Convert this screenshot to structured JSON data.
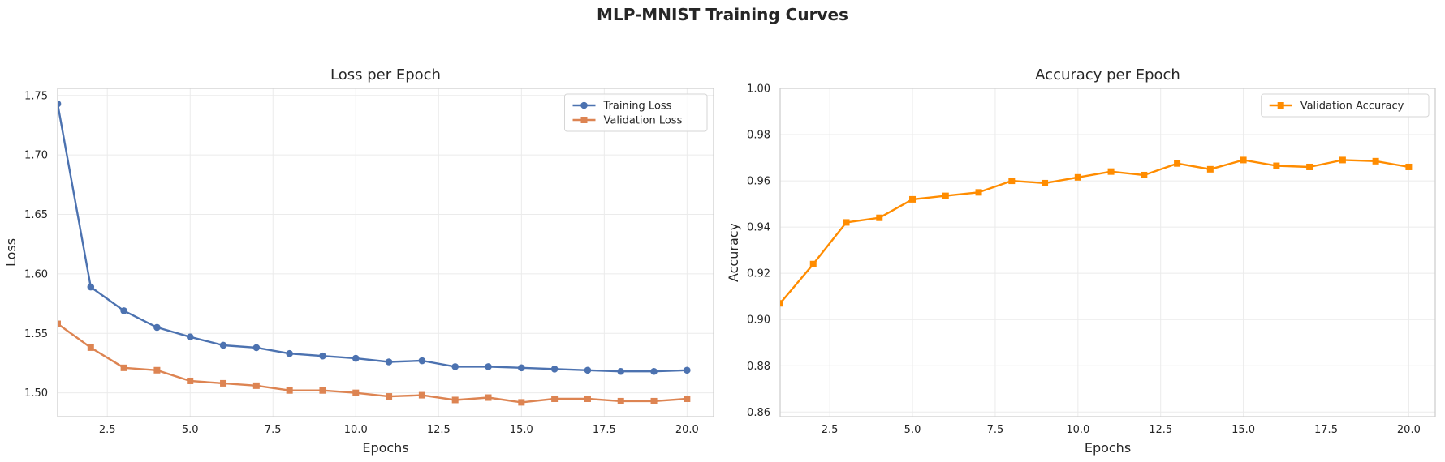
{
  "figure": {
    "title": "MLP-MNIST Training Curves"
  },
  "chart_data": [
    {
      "type": "line",
      "title": "Loss per Epoch",
      "xlabel": "Epochs",
      "ylabel": "Loss",
      "x": [
        1,
        2,
        3,
        4,
        5,
        6,
        7,
        8,
        9,
        10,
        11,
        12,
        13,
        14,
        15,
        16,
        17,
        18,
        19,
        20
      ],
      "xlim": [
        1,
        20.8
      ],
      "ylim": [
        1.48,
        1.756
      ],
      "xticks": [
        2.5,
        5.0,
        7.5,
        10.0,
        12.5,
        15.0,
        17.5,
        20.0
      ],
      "xtick_labels": [
        "2.5",
        "5.0",
        "7.5",
        "10.0",
        "12.5",
        "15.0",
        "17.5",
        "20.0"
      ],
      "yticks": [
        1.5,
        1.55,
        1.6,
        1.65,
        1.7,
        1.75
      ],
      "ytick_labels": [
        "1.50",
        "1.55",
        "1.60",
        "1.65",
        "1.70",
        "1.75"
      ],
      "grid": true,
      "legend": "top-right",
      "series": [
        {
          "name": "Training Loss",
          "color": "#4c72b0",
          "marker": "circle",
          "values": [
            1.743,
            1.589,
            1.569,
            1.555,
            1.547,
            1.54,
            1.538,
            1.533,
            1.531,
            1.529,
            1.526,
            1.527,
            1.522,
            1.522,
            1.521,
            1.52,
            1.519,
            1.518,
            1.518,
            1.519
          ]
        },
        {
          "name": "Validation Loss",
          "color": "#dd8452",
          "marker": "square",
          "values": [
            1.558,
            1.538,
            1.521,
            1.519,
            1.51,
            1.508,
            1.506,
            1.502,
            1.502,
            1.5,
            1.497,
            1.498,
            1.494,
            1.496,
            1.492,
            1.495,
            1.495,
            1.493,
            1.493,
            1.495
          ]
        }
      ]
    },
    {
      "type": "line",
      "title": "Accuracy per Epoch",
      "xlabel": "Epochs",
      "ylabel": "Accuracy",
      "x": [
        1,
        2,
        3,
        4,
        5,
        6,
        7,
        8,
        9,
        10,
        11,
        12,
        13,
        14,
        15,
        16,
        17,
        18,
        19,
        20
      ],
      "xlim": [
        1,
        20.8
      ],
      "ylim": [
        0.858,
        1.0
      ],
      "xticks": [
        2.5,
        5.0,
        7.5,
        10.0,
        12.5,
        15.0,
        17.5,
        20.0
      ],
      "xtick_labels": [
        "2.5",
        "5.0",
        "7.5",
        "10.0",
        "12.5",
        "15.0",
        "17.5",
        "20.0"
      ],
      "yticks": [
        0.86,
        0.88,
        0.9,
        0.92,
        0.94,
        0.96,
        0.98,
        1.0
      ],
      "ytick_labels": [
        "0.86",
        "0.88",
        "0.90",
        "0.92",
        "0.94",
        "0.96",
        "0.98",
        "1.00"
      ],
      "grid": true,
      "legend": "top-right",
      "series": [
        {
          "name": "Validation Accuracy",
          "color": "#ff8c00",
          "marker": "square",
          "values": [
            0.907,
            0.924,
            0.942,
            0.944,
            0.952,
            0.9535,
            0.955,
            0.96,
            0.959,
            0.9615,
            0.964,
            0.9625,
            0.9675,
            0.965,
            0.969,
            0.9665,
            0.966,
            0.969,
            0.9685,
            0.966
          ]
        }
      ]
    }
  ]
}
